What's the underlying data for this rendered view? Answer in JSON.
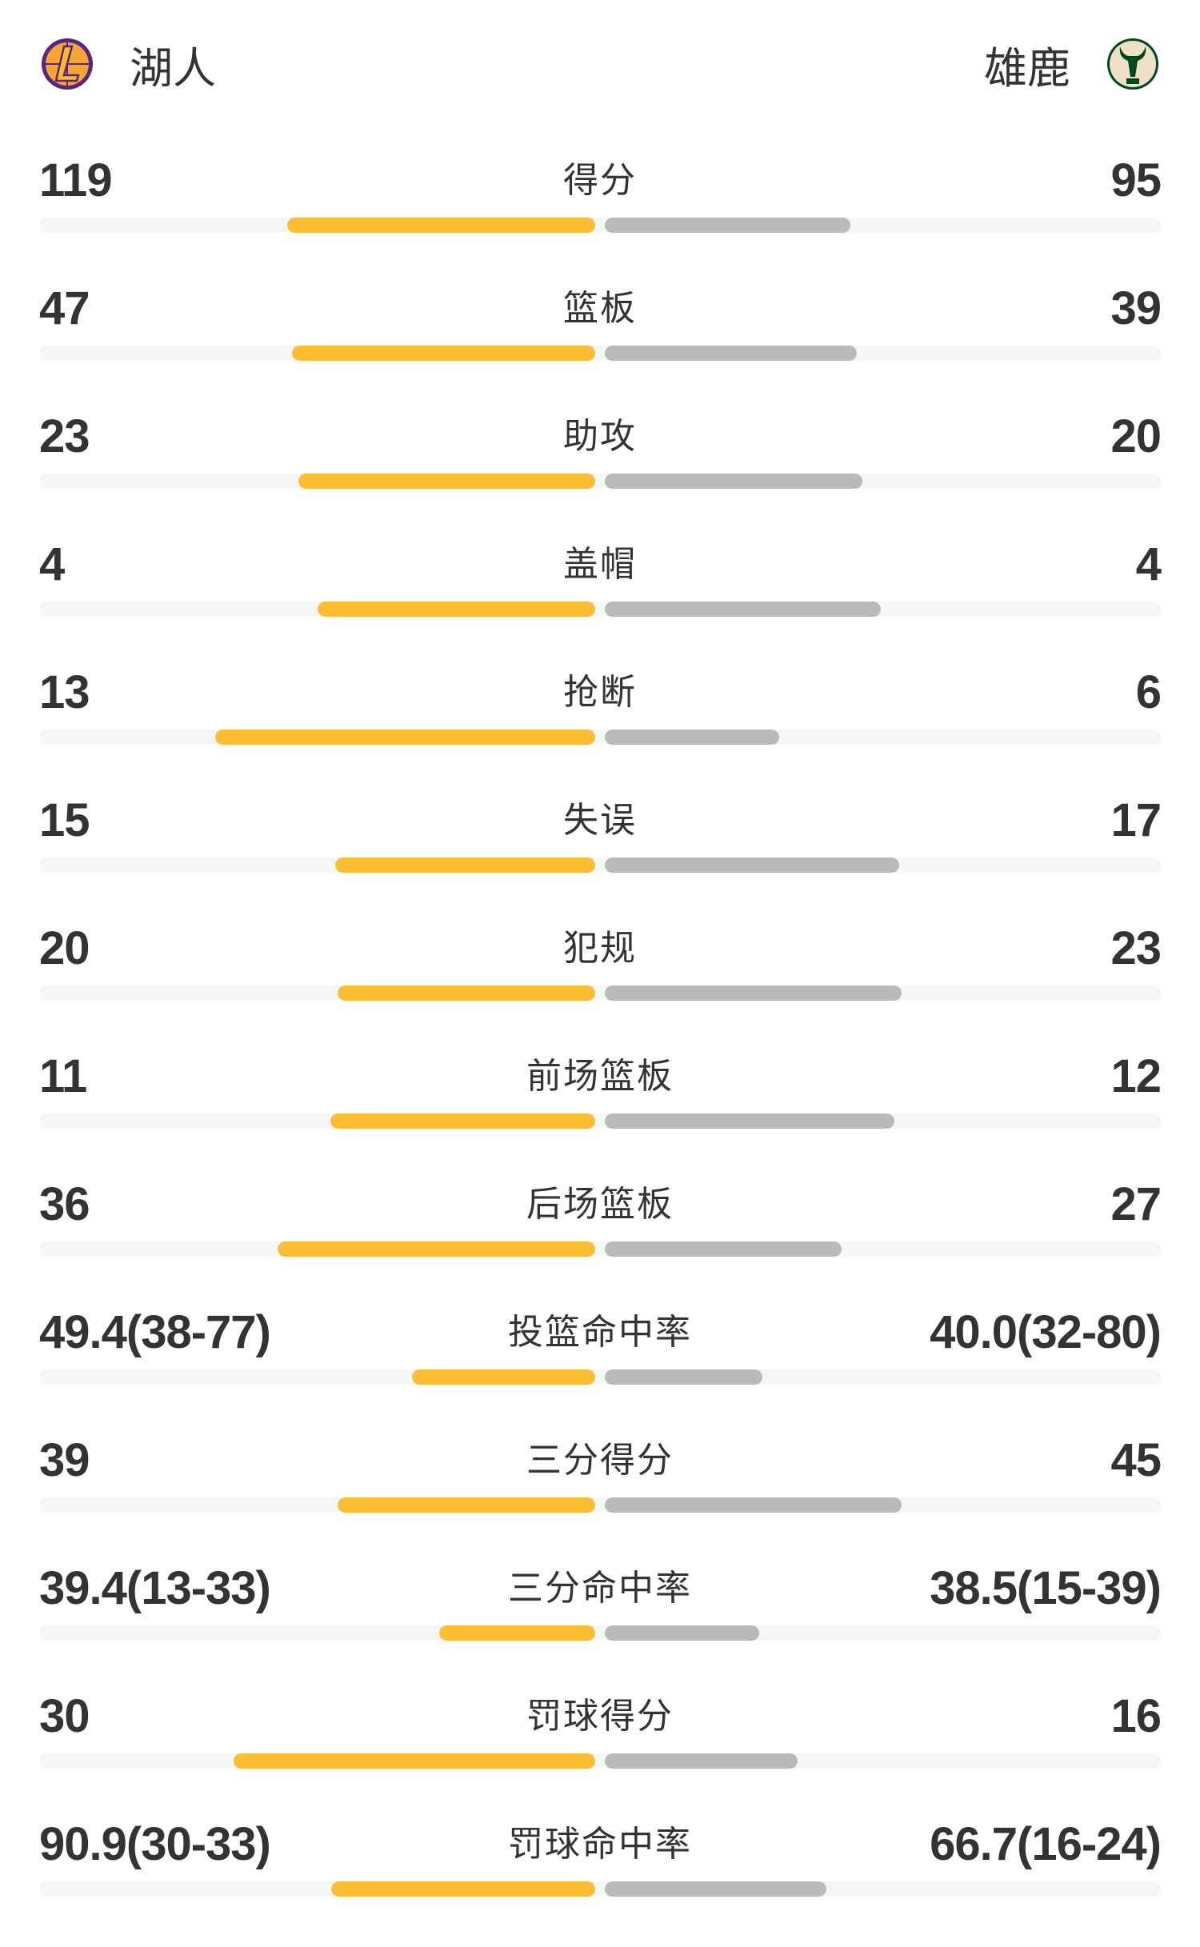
{
  "header": {
    "home": {
      "name": "湖人",
      "logo": "lakers-logo",
      "color": "#552583"
    },
    "away": {
      "name": "雄鹿",
      "logo": "bucks-logo",
      "color": "#00471b"
    }
  },
  "colors": {
    "home_bar": "#fdbe33",
    "away_bar": "#bababa",
    "track": "#f5f6f8"
  },
  "stats": [
    {
      "label": "得分",
      "home": "119",
      "away": "95",
      "home_fill": 0.554,
      "away_fill": 0.442
    },
    {
      "label": "篮板",
      "home": "47",
      "away": "39",
      "home_fill": 0.545,
      "away_fill": 0.453
    },
    {
      "label": "助攻",
      "home": "23",
      "away": "20",
      "home_fill": 0.534,
      "away_fill": 0.464
    },
    {
      "label": "盖帽",
      "home": "4",
      "away": "4",
      "home_fill": 0.499,
      "away_fill": 0.497
    },
    {
      "label": "抢断",
      "home": "13",
      "away": "6",
      "home_fill": 0.684,
      "away_fill": 0.314
    },
    {
      "label": "失误",
      "home": "15",
      "away": "17",
      "home_fill": 0.468,
      "away_fill": 0.53
    },
    {
      "label": "犯规",
      "home": "20",
      "away": "23",
      "home_fill": 0.464,
      "away_fill": 0.534
    },
    {
      "label": "前场篮板",
      "home": "11",
      "away": "12",
      "home_fill": 0.477,
      "away_fill": 0.521
    },
    {
      "label": "后场篮板",
      "home": "36",
      "away": "27",
      "home_fill": 0.571,
      "away_fill": 0.426
    },
    {
      "label": "投篮命中率",
      "home": "49.4(38-77)",
      "away": "40.0(32-80)",
      "home_fill": 0.33,
      "away_fill": 0.284
    },
    {
      "label": "三分得分",
      "home": "39",
      "away": "45",
      "home_fill": 0.464,
      "away_fill": 0.534
    },
    {
      "label": "三分命中率",
      "home": "39.4(13-33)",
      "away": "38.5(15-39)",
      "home_fill": 0.281,
      "away_fill": 0.277
    },
    {
      "label": "罚球得分",
      "home": "30",
      "away": "16",
      "home_fill": 0.651,
      "away_fill": 0.347
    },
    {
      "label": "罚球命中率",
      "home": "90.9(30-33)",
      "away": "66.7(16-24)",
      "home_fill": 0.475,
      "away_fill": 0.398
    }
  ]
}
